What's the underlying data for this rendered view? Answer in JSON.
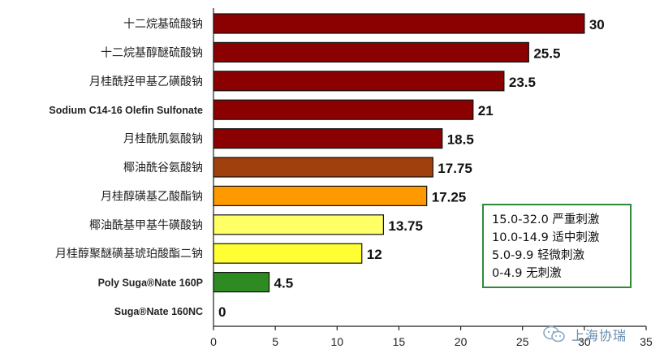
{
  "chart_data": {
    "type": "bar",
    "orientation": "horizontal",
    "categories": [
      "十二烷基硫酸钠",
      "十二烷基醇醚硫酸钠",
      "月桂酰羟甲基乙磺酸钠",
      "Sodium C14-16 Olefin Sulfonate",
      "月桂酰肌氨酸钠",
      "椰油酰谷氨酸钠",
      "月桂醇磺基乙酸酯钠",
      "椰油酰基甲基牛磺酸钠",
      "月桂醇聚醚磺基琥珀酸酯二钠",
      "Poly Suga®Nate 160P",
      "Suga®Nate 160NC"
    ],
    "values": [
      30,
      25.5,
      23.5,
      21,
      18.5,
      17.75,
      17.25,
      13.75,
      12,
      4.5,
      0
    ],
    "value_labels": [
      "30",
      "25.5",
      "23.5",
      "21",
      "18.5",
      "17.75",
      "17.25",
      "13.75",
      "12",
      "4.5",
      "0"
    ],
    "bar_colors": [
      "#8b0000",
      "#8b0000",
      "#8b0000",
      "#8b0000",
      "#8b0000",
      "#a0410d",
      "#ff9900",
      "#ffff66",
      "#ffff33",
      "#2e8b22",
      "#ffffff"
    ],
    "bold_categories": [
      3,
      9,
      10
    ],
    "xlim": [
      0,
      35
    ],
    "xticks": [
      "0",
      "5",
      "10",
      "15",
      "20",
      "25",
      "30",
      "35"
    ],
    "grid": false,
    "legend": {
      "placement": "bottom-right",
      "entries": [
        "15.0-32.0 严重刺激",
        "10.0-14.9 适中刺激",
        "5.0-9.9 轻微刺激",
        "0-4.9 无刺激"
      ]
    }
  },
  "watermark": {
    "text": "上海协瑞",
    "icon": "wechat-icon"
  }
}
